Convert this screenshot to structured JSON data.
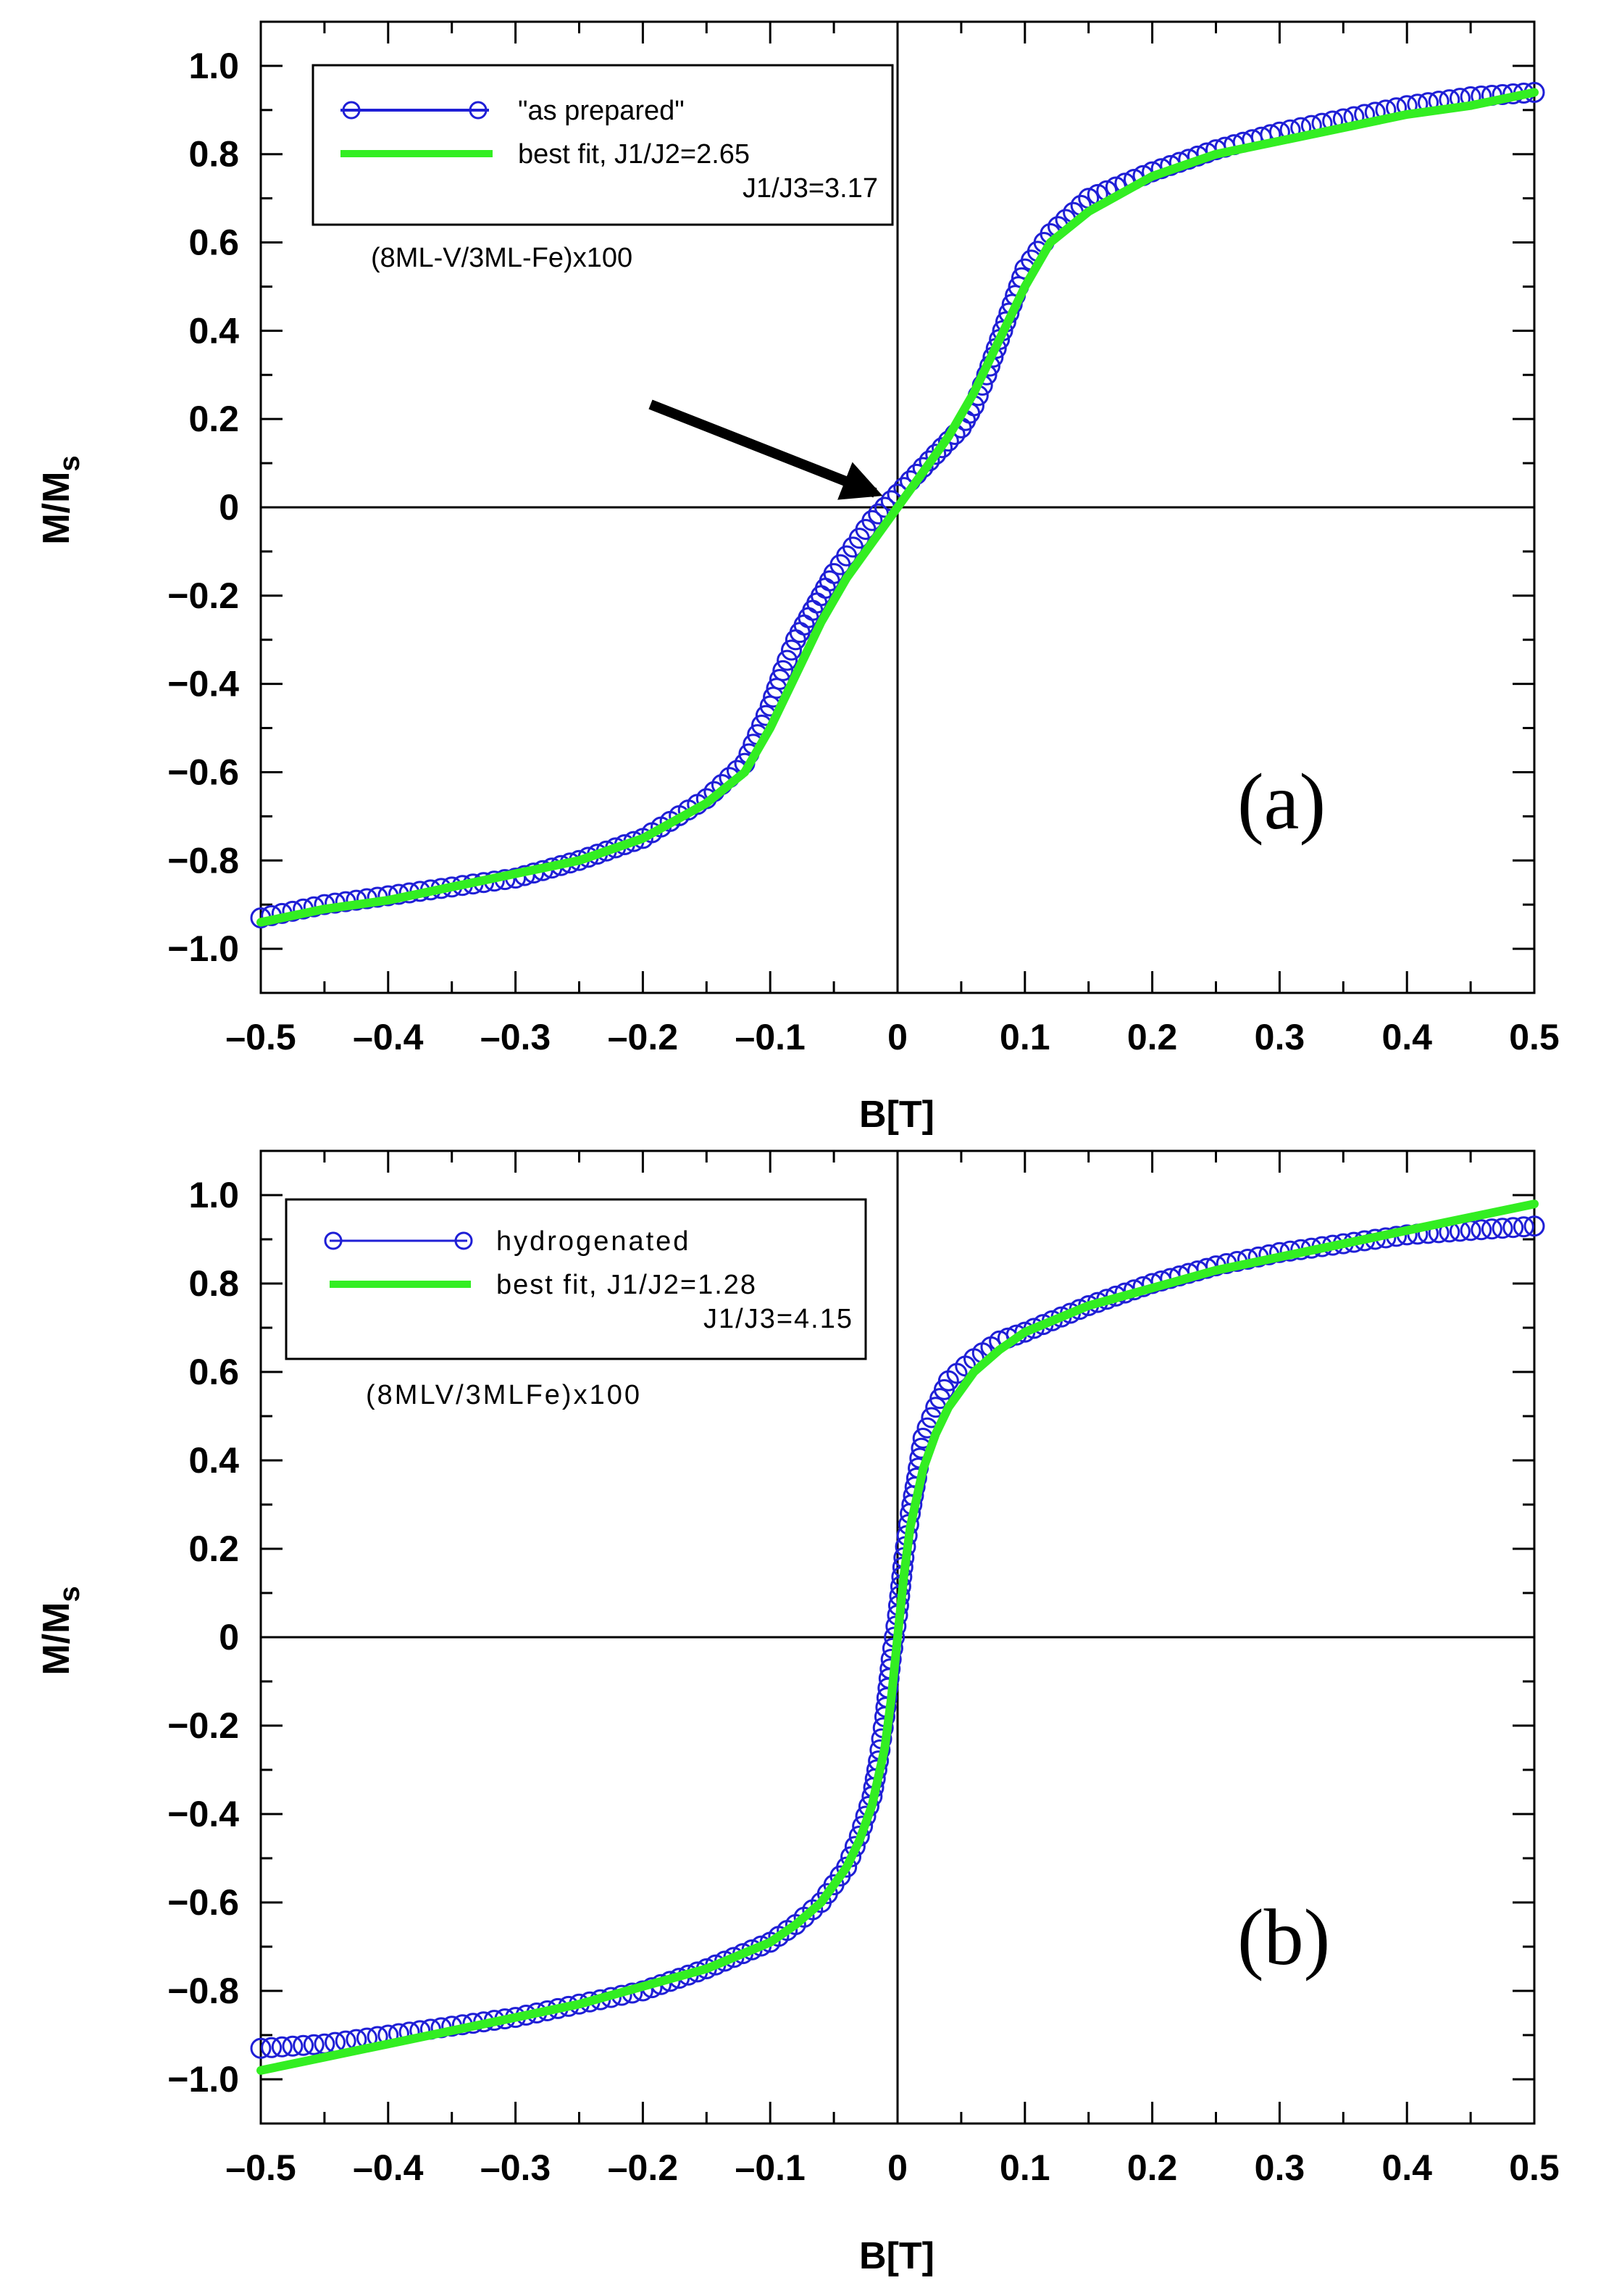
{
  "chart_data": [
    {
      "type": "scatter",
      "panel_label": "(a)",
      "xlabel": "B[T]",
      "ylabel_main": "M/M",
      "ylabel_sub": "s",
      "xlim": [
        -0.5,
        0.5
      ],
      "ylim": [
        -1.1,
        1.1
      ],
      "x_ticks": [
        -0.5,
        -0.4,
        -0.3,
        -0.2,
        -0.1,
        0,
        0.1,
        0.2,
        0.3,
        0.4,
        0.5
      ],
      "x_tick_labels": [
        "–0.5",
        "–0.4",
        "–0.3",
        "–0.2",
        "–0.1",
        "0",
        "0.1",
        "0.2",
        "0.3",
        "0.4",
        "0.5"
      ],
      "y_ticks": [
        1.0,
        0.8,
        0.6,
        0.4,
        0.2,
        0,
        -0.2,
        -0.4,
        -0.6,
        -0.8,
        -1.0
      ],
      "y_tick_labels": [
        "1.0",
        "0.8",
        "0.6",
        "0.4",
        "0.2",
        "0",
        "−0.2",
        "−0.4",
        "−0.6",
        "−0.8",
        "−1.0"
      ],
      "legend": [
        {
          "label": "\"as prepared\"",
          "style": "markers-line",
          "color": "#1f1fd6"
        },
        {
          "label": "best fit, J1/J2=2.65",
          "style": "line",
          "color": "#33ee22"
        },
        {
          "label": "J1/J3=3.17",
          "style": "text"
        }
      ],
      "sample_label": "(8ML-V/3ML-Fe)x100",
      "annotation": {
        "type": "arrow",
        "points_to": [
          0,
          0
        ]
      },
      "series": [
        {
          "name": "\"as prepared\"",
          "color": "#1f1fd6",
          "marker": "open-circle",
          "x": [
            -0.5,
            -0.45,
            -0.4,
            -0.35,
            -0.3,
            -0.25,
            -0.2,
            -0.15,
            -0.12,
            -0.1,
            -0.09,
            -0.08,
            -0.07,
            -0.06,
            -0.05,
            -0.04,
            -0.03,
            -0.02,
            -0.01,
            0,
            0.01,
            0.02,
            0.03,
            0.04,
            0.05,
            0.06,
            0.07,
            0.08,
            0.09,
            0.1,
            0.12,
            0.15,
            0.2,
            0.25,
            0.3,
            0.35,
            0.4,
            0.45,
            0.5
          ],
          "y": [
            -0.93,
            -0.9,
            -0.88,
            -0.86,
            -0.84,
            -0.8,
            -0.75,
            -0.66,
            -0.58,
            -0.45,
            -0.37,
            -0.3,
            -0.25,
            -0.2,
            -0.15,
            -0.11,
            -0.07,
            -0.03,
            0.0,
            0.03,
            0.06,
            0.09,
            0.12,
            0.15,
            0.18,
            0.23,
            0.3,
            0.38,
            0.46,
            0.54,
            0.62,
            0.7,
            0.76,
            0.81,
            0.85,
            0.88,
            0.91,
            0.93,
            0.94
          ]
        },
        {
          "name": "best fit",
          "color": "#33ee22",
          "marker": "none",
          "x": [
            -0.5,
            -0.45,
            -0.4,
            -0.35,
            -0.3,
            -0.25,
            -0.2,
            -0.15,
            -0.12,
            -0.1,
            -0.08,
            -0.06,
            -0.04,
            -0.02,
            0,
            0.02,
            0.04,
            0.06,
            0.08,
            0.1,
            0.12,
            0.15,
            0.2,
            0.25,
            0.3,
            0.35,
            0.4,
            0.45,
            0.5
          ],
          "y": [
            -0.94,
            -0.91,
            -0.89,
            -0.86,
            -0.83,
            -0.8,
            -0.75,
            -0.67,
            -0.6,
            -0.5,
            -0.38,
            -0.26,
            -0.16,
            -0.08,
            0.0,
            0.08,
            0.16,
            0.26,
            0.38,
            0.5,
            0.6,
            0.67,
            0.75,
            0.8,
            0.83,
            0.86,
            0.89,
            0.91,
            0.94
          ]
        }
      ]
    },
    {
      "type": "scatter",
      "panel_label": "(b)",
      "xlabel": "B[T]",
      "ylabel_main": "M/M",
      "ylabel_sub": "s",
      "xlim": [
        -0.5,
        0.5
      ],
      "ylim": [
        -1.1,
        1.1
      ],
      "x_ticks": [
        -0.5,
        -0.4,
        -0.3,
        -0.2,
        -0.1,
        0,
        0.1,
        0.2,
        0.3,
        0.4,
        0.5
      ],
      "x_tick_labels": [
        "–0.5",
        "–0.4",
        "–0.3",
        "–0.2",
        "–0.1",
        "0",
        "0.1",
        "0.2",
        "0.3",
        "0.4",
        "0.5"
      ],
      "y_ticks": [
        1.0,
        0.8,
        0.6,
        0.4,
        0.2,
        0,
        -0.2,
        -0.4,
        -0.6,
        -0.8,
        -1.0
      ],
      "y_tick_labels": [
        "1.0",
        "0.8",
        "0.6",
        "0.4",
        "0.2",
        "0",
        "−0.2",
        "−0.4",
        "−0.6",
        "−0.8",
        "−1.0"
      ],
      "legend": [
        {
          "label": "hydrogenated",
          "style": "markers-line",
          "color": "#1f1fd6"
        },
        {
          "label": "best fit, J1/J2=1.28",
          "style": "line",
          "color": "#33ee22"
        },
        {
          "label": "J1/J3=4.15",
          "style": "text"
        }
      ],
      "sample_label": "(8MLV/3MLFe)x100",
      "series": [
        {
          "name": "hydrogenated",
          "color": "#1f1fd6",
          "marker": "open-circle",
          "x": [
            -0.5,
            -0.45,
            -0.4,
            -0.35,
            -0.3,
            -0.25,
            -0.2,
            -0.15,
            -0.1,
            -0.08,
            -0.06,
            -0.04,
            -0.03,
            -0.02,
            -0.015,
            -0.01,
            -0.005,
            0,
            0.005,
            0.01,
            0.015,
            0.02,
            0.03,
            0.04,
            0.06,
            0.08,
            0.1,
            0.15,
            0.2,
            0.25,
            0.3,
            0.35,
            0.4,
            0.45,
            0.5
          ],
          "y": [
            -0.93,
            -0.92,
            -0.9,
            -0.88,
            -0.86,
            -0.83,
            -0.8,
            -0.75,
            -0.69,
            -0.65,
            -0.6,
            -0.52,
            -0.45,
            -0.36,
            -0.28,
            -0.18,
            -0.05,
            0.05,
            0.18,
            0.28,
            0.36,
            0.45,
            0.52,
            0.58,
            0.63,
            0.67,
            0.69,
            0.75,
            0.8,
            0.84,
            0.87,
            0.89,
            0.91,
            0.92,
            0.93
          ]
        },
        {
          "name": "best fit",
          "color": "#33ee22",
          "marker": "none",
          "x": [
            -0.5,
            -0.45,
            -0.4,
            -0.35,
            -0.3,
            -0.25,
            -0.2,
            -0.15,
            -0.1,
            -0.08,
            -0.06,
            -0.04,
            -0.03,
            -0.02,
            -0.01,
            -0.005,
            0,
            0.005,
            0.01,
            0.02,
            0.03,
            0.04,
            0.06,
            0.08,
            0.1,
            0.15,
            0.2,
            0.25,
            0.3,
            0.35,
            0.4,
            0.45,
            0.5
          ],
          "y": [
            -0.98,
            -0.95,
            -0.92,
            -0.89,
            -0.86,
            -0.83,
            -0.79,
            -0.75,
            -0.69,
            -0.65,
            -0.6,
            -0.52,
            -0.46,
            -0.38,
            -0.25,
            -0.14,
            0.0,
            0.14,
            0.25,
            0.38,
            0.46,
            0.52,
            0.6,
            0.65,
            0.69,
            0.75,
            0.79,
            0.83,
            0.86,
            0.89,
            0.92,
            0.95,
            0.98
          ]
        }
      ]
    }
  ]
}
